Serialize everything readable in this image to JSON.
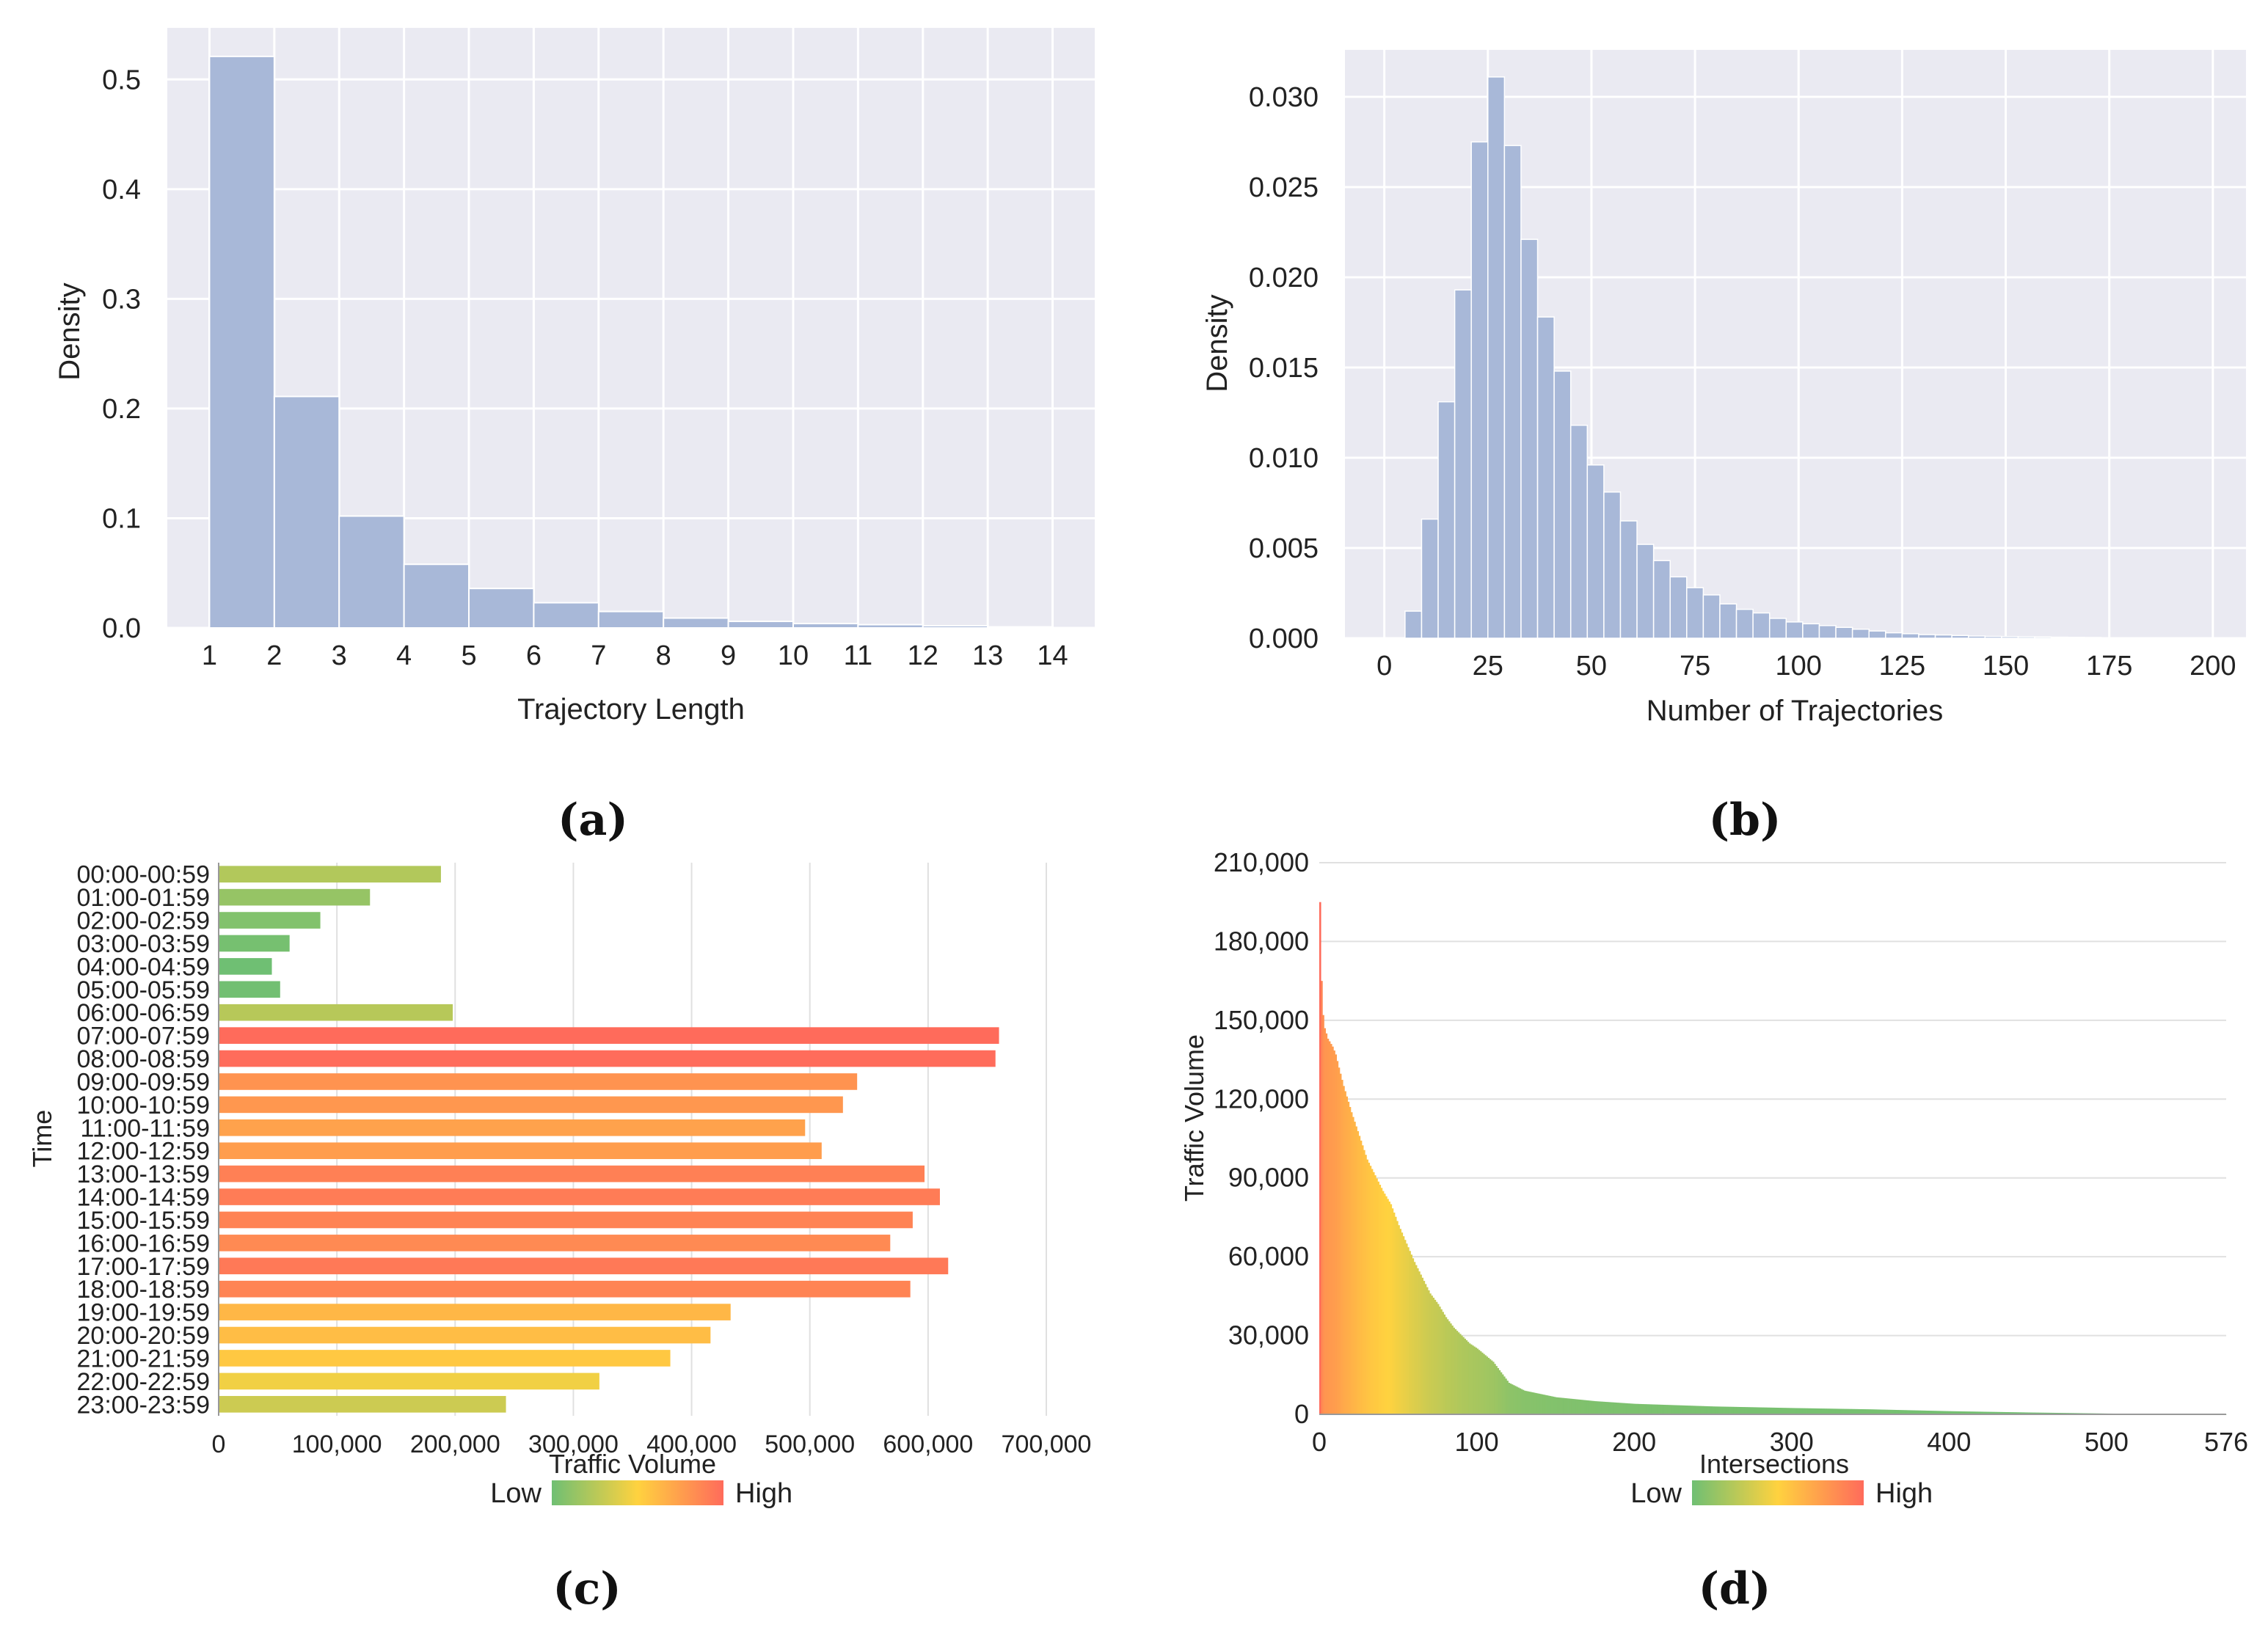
{
  "chart_data": [
    {
      "id": "a",
      "type": "bar",
      "subtype": "histogram",
      "caption": "(a)",
      "xlabel": "Trajectory Length",
      "ylabel": "Density",
      "bin_edges": [
        1,
        2,
        3,
        4,
        5,
        6,
        7,
        8,
        9,
        10,
        11,
        12,
        13,
        14
      ],
      "values": [
        0.521,
        0.211,
        0.102,
        0.058,
        0.036,
        0.023,
        0.015,
        0.009,
        0.006,
        0.004,
        0.003,
        0.002,
        0.001
      ],
      "xticks": [
        "1",
        "2",
        "3",
        "4",
        "5",
        "6",
        "7",
        "8",
        "9",
        "10",
        "11",
        "12",
        "13",
        "14"
      ],
      "yticks": [
        "0.0",
        "0.1",
        "0.2",
        "0.3",
        "0.4",
        "0.5"
      ],
      "xlim": [
        0.35,
        14.65
      ],
      "ylim": [
        0,
        0.547
      ],
      "colors": {
        "bar": "#a8b8d8",
        "background": "#eaeaf2",
        "grid": "#ffffff"
      }
    },
    {
      "id": "b",
      "type": "bar",
      "subtype": "histogram",
      "caption": "(b)",
      "xlabel": "Number of Trajectories",
      "ylabel": "Density",
      "bin_start": 5,
      "bin_width": 4,
      "values": [
        0.0015,
        0.0066,
        0.0131,
        0.0193,
        0.0275,
        0.0311,
        0.0273,
        0.0221,
        0.0178,
        0.0148,
        0.0118,
        0.0096,
        0.0081,
        0.0065,
        0.0052,
        0.0043,
        0.0034,
        0.0028,
        0.0024,
        0.0019,
        0.0016,
        0.0014,
        0.0011,
        0.0009,
        0.0008,
        0.0007,
        0.0006,
        0.0005,
        0.0004,
        0.0003,
        0.00025,
        0.0002,
        0.00018,
        0.00015,
        0.00012,
        0.0001,
        9e-05,
        8e-05,
        7e-05,
        6e-05,
        5e-05,
        4e-05,
        3e-05,
        2e-05,
        2e-05,
        1e-05,
        1e-05,
        1e-05
      ],
      "xticks": [
        "0",
        "25",
        "50",
        "75",
        "100",
        "125",
        "150",
        "175",
        "200"
      ],
      "yticks": [
        "0.000",
        "0.005",
        "0.010",
        "0.015",
        "0.020",
        "0.025",
        "0.030"
      ],
      "xlim": [
        -9.5,
        208
      ],
      "ylim": [
        0,
        0.0326
      ],
      "colors": {
        "bar": "#a8b8d8",
        "background": "#eaeaf2",
        "grid": "#ffffff"
      }
    },
    {
      "id": "c",
      "type": "bar",
      "orientation": "horizontal",
      "caption": "(c)",
      "xlabel": "Traffic Volume",
      "ylabel": "Time",
      "categories": [
        "00:00-00:59",
        "01:00-01:59",
        "02:00-02:59",
        "03:00-03:59",
        "04:00-04:59",
        "05:00-05:59",
        "06:00-06:59",
        "07:00-07:59",
        "08:00-08:59",
        "09:00-09:59",
        "10:00-10:59",
        "11:00-11:59",
        "12:00-12:59",
        "13:00-13:59",
        "14:00-14:59",
        "15:00-15:59",
        "16:00-16:59",
        "17:00-17:59",
        "18:00-18:59",
        "19:00-19:59",
        "20:00-20:59",
        "21:00-21:59",
        "22:00-22:59",
        "23:00-23:59"
      ],
      "values": [
        188000,
        128000,
        86000,
        60000,
        45000,
        52000,
        198000,
        660000,
        657000,
        540000,
        528000,
        496000,
        510000,
        597000,
        610000,
        587000,
        568000,
        617000,
        585000,
        433000,
        416000,
        382000,
        322000,
        243000
      ],
      "xticks": [
        "0",
        "100,000",
        "200,000",
        "300,000",
        "400,000",
        "500,000",
        "600,000",
        "700,000"
      ],
      "xlim": [
        0,
        700000
      ],
      "legend": {
        "low": "Low",
        "high": "High"
      },
      "colors": {
        "low": "#6fbf73",
        "mid": "#ffd23f",
        "high": "#ff6b5b",
        "grid": "#e0e0e0"
      }
    },
    {
      "id": "d",
      "type": "bar",
      "subtype": "sorted-distribution",
      "caption": "(d)",
      "xlabel": "Intersections",
      "ylabel": "Traffic Volume",
      "n_intersections": 576,
      "profile_knots_index": [
        0,
        1,
        2,
        3,
        5,
        8,
        10,
        12,
        15,
        20,
        25,
        30,
        35,
        40,
        45,
        50,
        55,
        60,
        65,
        70,
        75,
        80,
        85,
        90,
        95,
        100,
        110,
        120,
        130,
        150,
        175,
        200,
        250,
        300,
        350,
        400,
        450,
        500,
        540,
        576
      ],
      "profile_knots_value": [
        195000,
        165000,
        152000,
        147000,
        143000,
        140000,
        137000,
        132000,
        125000,
        115000,
        106000,
        97000,
        91000,
        85000,
        80000,
        72000,
        65000,
        58000,
        52000,
        46000,
        42000,
        37000,
        33000,
        30000,
        27000,
        25000,
        20000,
        12000,
        9000,
        6500,
        5000,
        4000,
        3000,
        2400,
        1900,
        1200,
        700,
        300,
        100,
        0
      ],
      "xticks": [
        "0",
        "100",
        "200",
        "300",
        "400",
        "500",
        "576"
      ],
      "yticks": [
        "0",
        "30,000",
        "60,000",
        "90,000",
        "120,000",
        "150,000",
        "180,000",
        "210,000"
      ],
      "xlim": [
        0,
        576
      ],
      "ylim": [
        0,
        210000
      ],
      "legend": {
        "low": "Low",
        "high": "High"
      },
      "colors": {
        "low": "#6fbf73",
        "mid": "#ffd23f",
        "high": "#ff6b5b",
        "grid": "#e0e0e0"
      }
    }
  ]
}
